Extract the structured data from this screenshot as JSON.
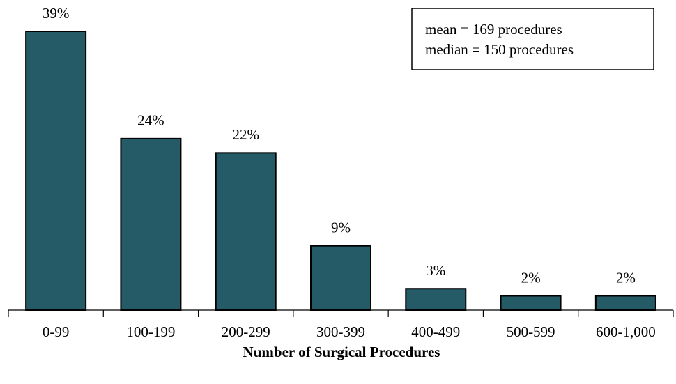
{
  "chart_data": {
    "type": "bar",
    "categories": [
      "0-99",
      "100-199",
      "200-299",
      "300-399",
      "400-499",
      "500-599",
      "600-1,000"
    ],
    "values": [
      39,
      24,
      22,
      9,
      3,
      2,
      2
    ],
    "value_labels": [
      "39%",
      "24%",
      "22%",
      "9%",
      "3%",
      "2%",
      "2%"
    ],
    "color": "#255b67",
    "x_label": "Number of Surgical Procedures",
    "annotations": [
      "mean = 169 procedures",
      "median = 150 procedures"
    ]
  }
}
